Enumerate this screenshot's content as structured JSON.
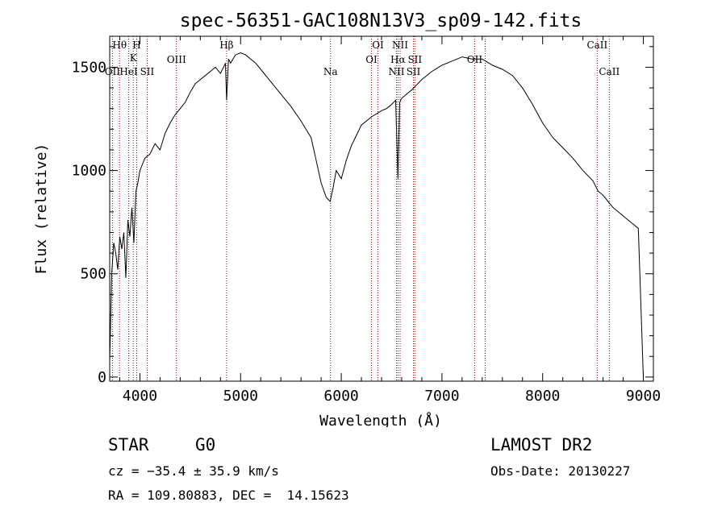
{
  "chart_data": {
    "type": "line",
    "title": "spec-56351-GAC108N13V3_sp09-142.fits",
    "xlabel": "Wavelength (Å)",
    "ylabel": "Flux (relative)",
    "xlim": [
      3700,
      9100
    ],
    "ylim": [
      -20,
      1650
    ],
    "xticks": [
      4000,
      5000,
      6000,
      7000,
      8000,
      9000
    ],
    "yticks": [
      0,
      500,
      1000,
      1500
    ],
    "xtick_labels": [
      "4000",
      "5000",
      "6000",
      "7000",
      "8000",
      "9000"
    ],
    "ytick_labels": [
      "0",
      "500",
      "1000",
      "1500"
    ],
    "series": [
      {
        "x": [
          3700,
          3720,
          3740,
          3760,
          3780,
          3800,
          3820,
          3840,
          3860,
          3880,
          3900,
          3920,
          3940,
          3960,
          3980,
          4000,
          4050,
          4100,
          4150,
          4200,
          4250,
          4300,
          4350,
          4400,
          4450,
          4500,
          4550,
          4600,
          4650,
          4700,
          4750,
          4800,
          4850,
          4861,
          4880,
          4900,
          4950,
          5000,
          5050,
          5100,
          5150,
          5200,
          5300,
          5400,
          5500,
          5600,
          5700,
          5750,
          5800,
          5850,
          5890,
          5920,
          5950,
          6000,
          6050,
          6100,
          6150,
          6200,
          6300,
          6400,
          6450,
          6500,
          6540,
          6563,
          6580,
          6600,
          6650,
          6700,
          6800,
          6900,
          7000,
          7100,
          7200,
          7300,
          7400,
          7500,
          7600,
          7700,
          7800,
          7900,
          8000,
          8100,
          8200,
          8300,
          8400,
          8500,
          8550,
          8600,
          8650,
          8700,
          8750,
          8800,
          8850,
          8900,
          8950,
          9000
        ],
        "y": [
          80,
          500,
          650,
          600,
          520,
          680,
          620,
          700,
          480,
          760,
          680,
          820,
          650,
          900,
          940,
          1000,
          1060,
          1080,
          1130,
          1100,
          1180,
          1230,
          1270,
          1300,
          1330,
          1380,
          1420,
          1440,
          1460,
          1480,
          1500,
          1470,
          1520,
          1340,
          1540,
          1520,
          1560,
          1570,
          1560,
          1540,
          1520,
          1490,
          1430,
          1370,
          1310,
          1240,
          1160,
          1050,
          940,
          870,
          850,
          920,
          1000,
          960,
          1050,
          1120,
          1170,
          1220,
          1260,
          1290,
          1300,
          1320,
          1340,
          960,
          1330,
          1350,
          1370,
          1390,
          1440,
          1480,
          1510,
          1530,
          1550,
          1540,
          1540,
          1510,
          1490,
          1460,
          1400,
          1320,
          1230,
          1160,
          1110,
          1060,
          1000,
          950,
          900,
          880,
          850,
          820,
          800,
          780,
          760,
          740,
          720,
          0
        ]
      }
    ],
    "line_markers": [
      {
        "label": "Hθ",
        "x": 3798,
        "row": 0
      },
      {
        "label": "OII",
        "x": 3727,
        "row": 1
      },
      {
        "label": "H",
        "x": 3968,
        "row": 0
      },
      {
        "label": "K",
        "x": 3934,
        "row": 2
      },
      {
        "label": "HeI",
        "x": 3889,
        "row": 1
      },
      {
        "label": "SII",
        "x": 4072,
        "row": 1
      },
      {
        "label": "OIII",
        "x": 4363,
        "row": 3
      },
      {
        "label": "Hβ",
        "x": 4861,
        "row": 0
      },
      {
        "label": "Na",
        "x": 5893,
        "row": 1
      },
      {
        "label": "OI",
        "x": 6364,
        "row": 0
      },
      {
        "label": "OI",
        "x": 6300,
        "row": 3
      },
      {
        "label": "NII",
        "x": 6584,
        "row": 0
      },
      {
        "label": "Hα",
        "x": 6563,
        "row": 3
      },
      {
        "label": "SII",
        "x": 6731,
        "row": 3
      },
      {
        "label": "NII",
        "x": 6548,
        "row": 1
      },
      {
        "label": "SII",
        "x": 6717,
        "row": 1
      },
      {
        "label": "OII",
        "x": 7325,
        "row": 3
      },
      {
        "label": "CaII",
        "x": 8542,
        "row": 0
      },
      {
        "label": "CaII",
        "x": 8662,
        "row": 1
      }
    ],
    "marker_extra_x": [
      7430
    ],
    "marker_color": "#8b0000",
    "grid": false
  },
  "info": {
    "object_type": "STAR",
    "subclass": "G0",
    "survey": "LAMOST DR2",
    "cz": "cz = −35.4 ± 35.9 km/s",
    "obs_date": "Obs-Date: 20130227",
    "coords": "RA = 109.80883, DEC =  14.15623"
  }
}
